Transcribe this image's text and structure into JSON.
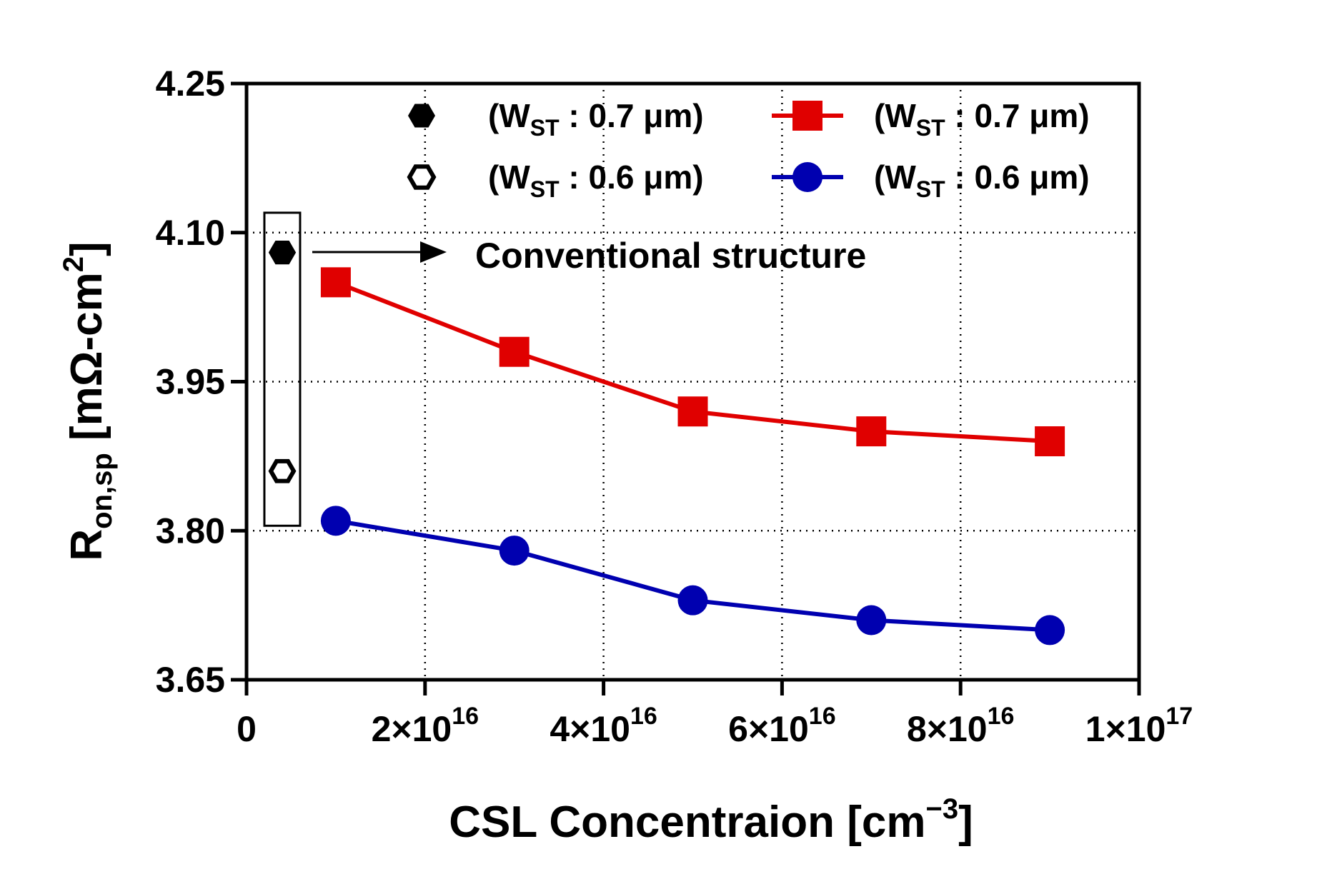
{
  "chart_data": {
    "type": "line",
    "xlabel": "CSL Concentraion [cm",
    "xlabel_sup": "−3",
    "xlabel_close": "]",
    "ylabel_main": "R",
    "ylabel_sub": "on,sp",
    "ylabel_unit": " [mΩ-cm",
    "ylabel_sup": "2",
    "ylabel_close": "]",
    "xlim": [
      0,
      100000000000000000
    ],
    "ylim": [
      3.65,
      4.25
    ],
    "x_ticks": [
      {
        "value": 0,
        "mantissa": "0",
        "exp": ""
      },
      {
        "value": 20000000000000000,
        "mantissa": "2×10",
        "exp": "16"
      },
      {
        "value": 40000000000000000,
        "mantissa": "4×10",
        "exp": "16"
      },
      {
        "value": 60000000000000000,
        "mantissa": "6×10",
        "exp": "16"
      },
      {
        "value": 80000000000000000,
        "mantissa": "8×10",
        "exp": "16"
      },
      {
        "value": 100000000000000000,
        "mantissa": "1×10",
        "exp": "17"
      }
    ],
    "y_ticks": [
      {
        "value": 3.65,
        "label": "3.65"
      },
      {
        "value": 3.8,
        "label": "3.80"
      },
      {
        "value": 3.95,
        "label": "3.95"
      },
      {
        "value": 4.1,
        "label": "4.10"
      },
      {
        "value": 4.25,
        "label": "4.25"
      }
    ],
    "grid": "dotted",
    "series": [
      {
        "name": "(WST : 0.7 μm)",
        "color": "#e00000",
        "marker": "square",
        "x": [
          10000000000000000,
          30000000000000000,
          50000000000000000,
          70000000000000000,
          90000000000000000
        ],
        "y": [
          4.05,
          3.98,
          3.92,
          3.9,
          3.89
        ]
      },
      {
        "name": "(WST : 0.6 μm)",
        "color": "#0000b0",
        "marker": "circle",
        "x": [
          10000000000000000,
          30000000000000000,
          50000000000000000,
          70000000000000000,
          90000000000000000
        ],
        "y": [
          3.81,
          3.78,
          3.73,
          3.71,
          3.7
        ]
      }
    ],
    "conventional": [
      {
        "name": "(WST : 0.7 μm)",
        "marker": "hexagon-filled",
        "x": 4000000000000000,
        "y": 4.08
      },
      {
        "name": "(WST : 0.6 μm)",
        "marker": "hexagon-open",
        "x": 4000000000000000,
        "y": 3.86
      }
    ],
    "annotation": "Conventional structure",
    "legend": [
      {
        "prefix": "(W",
        "sub": "ST",
        "suffix": " : 0.7 μm)",
        "marker": "hexagon-filled",
        "color": "#000000"
      },
      {
        "prefix": "(W",
        "sub": "ST",
        "suffix": " : 0.6 μm)",
        "marker": "hexagon-open",
        "color": "#000000"
      },
      {
        "prefix": "(W",
        "sub": "ST",
        "suffix": " : 0.7 μm)",
        "marker": "square-line",
        "color": "#e00000"
      },
      {
        "prefix": "(W",
        "sub": "ST",
        "suffix": " : 0.6 μm)",
        "marker": "circle-line",
        "color": "#0000b0"
      }
    ],
    "legend_placement": "top"
  }
}
